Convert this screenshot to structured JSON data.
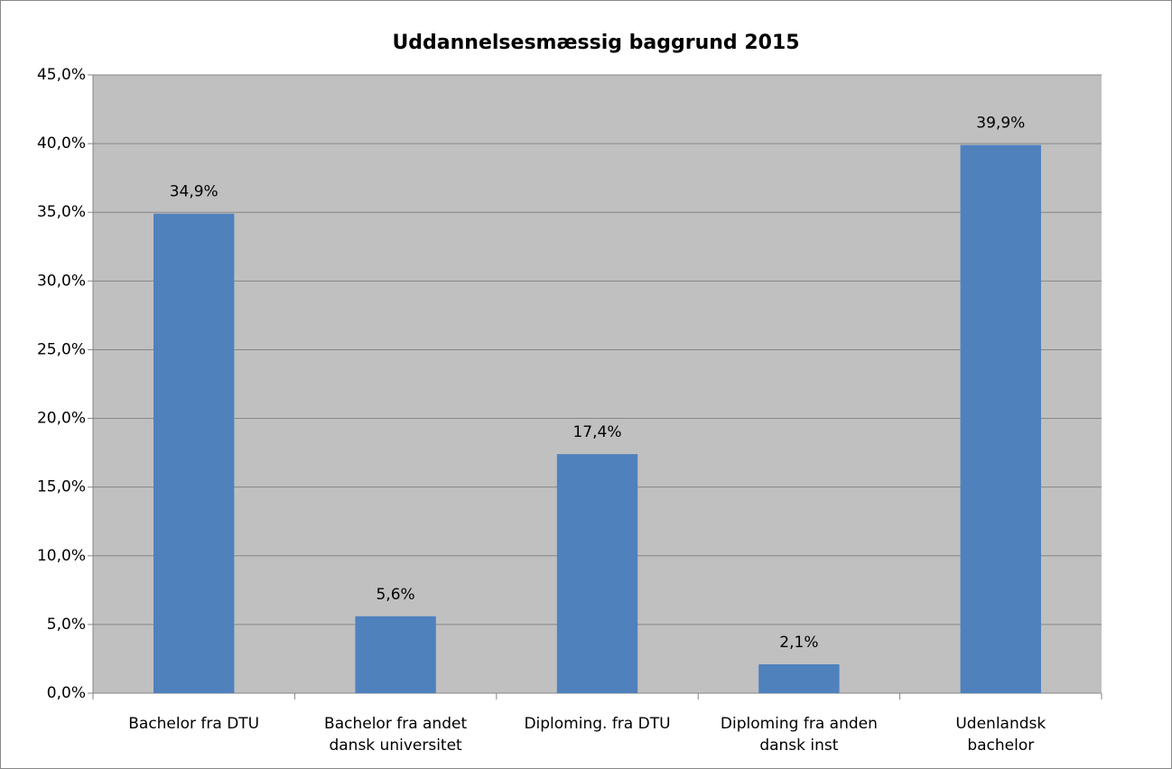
{
  "chart_data": {
    "type": "bar",
    "title": "Uddannelsesmæssig baggrund 2015",
    "categories": [
      "Bachelor fra DTU",
      "Bachelor fra andet\ndansk universitet",
      "Diploming. fra DTU",
      "Diploming fra anden\ndansk inst",
      "Udenlandsk\nbachelor"
    ],
    "values": [
      34.9,
      5.6,
      17.4,
      2.1,
      39.9
    ],
    "value_labels": [
      "34,9%",
      "5,6%",
      "17,4%",
      "2,1%",
      "39,9%"
    ],
    "color": "#4f81bd",
    "ylim": [
      0,
      45
    ],
    "yticks": [
      {
        "value": 0,
        "label": "0,0%"
      },
      {
        "value": 5,
        "label": "5,0%"
      },
      {
        "value": 10,
        "label": "10,0%"
      },
      {
        "value": 15,
        "label": "15,0%"
      },
      {
        "value": 20,
        "label": "20,0%"
      },
      {
        "value": 25,
        "label": "25,0%"
      },
      {
        "value": 30,
        "label": "30,0%"
      },
      {
        "value": 35,
        "label": "35,0%"
      },
      {
        "value": 40,
        "label": "40,0%"
      },
      {
        "value": 45,
        "label": "45,0%"
      }
    ],
    "grid": true
  }
}
